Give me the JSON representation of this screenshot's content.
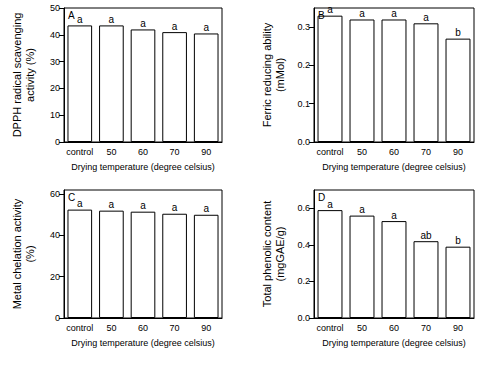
{
  "chart_data": [
    {
      "type": "bar",
      "title": "A",
      "categories": [
        "control",
        "50",
        "60",
        "70",
        "90"
      ],
      "values": [
        43.5,
        43.5,
        42,
        41,
        40.5
      ],
      "annotations": [
        "a",
        "a",
        "a",
        "a",
        "a"
      ],
      "color": "#ffffff",
      "xlabel": "Drying temperature (degree celsius)",
      "ylabel": "DPPH radical scavenging activity (%)",
      "ylim": [
        0,
        50
      ],
      "yticks": [
        0,
        10,
        20,
        30,
        40,
        50
      ],
      "grid": false
    },
    {
      "type": "bar",
      "title": "B",
      "categories": [
        "control",
        "50",
        "60",
        "70",
        "90"
      ],
      "values": [
        0.33,
        0.32,
        0.32,
        0.31,
        0.27
      ],
      "annotations": [
        "a",
        "a",
        "a",
        "a",
        "b"
      ],
      "color": "#ffffff",
      "xlabel": "Drying temperature (degree celsius)",
      "ylabel": "Ferric reducing ability (mMol)",
      "ylim": [
        0,
        0.35
      ],
      "yticks": [
        {
          "value": 0,
          "label": "0.0"
        },
        0.1,
        0.2,
        0.3
      ],
      "grid": false
    },
    {
      "type": "bar",
      "title": "C",
      "categories": [
        "control",
        "50",
        "60",
        "70",
        "90"
      ],
      "values": [
        52.5,
        52,
        51.5,
        50.5,
        50
      ],
      "annotations": [
        "a",
        "a",
        "a",
        "a",
        "a"
      ],
      "color": "#ffffff",
      "xlabel": "Drying temperature (degree celsius)",
      "ylabel": "Metal chelation activity (%)",
      "ylim": [
        0,
        62
      ],
      "yticks": [
        0,
        20,
        40,
        60
      ],
      "grid": false
    },
    {
      "type": "bar",
      "title": "D",
      "categories": [
        "control",
        "50",
        "60",
        "70",
        "90"
      ],
      "values": [
        0.59,
        0.56,
        0.53,
        0.42,
        0.39
      ],
      "annotations": [
        "a",
        "a",
        "a",
        "ab",
        "b"
      ],
      "color": "#ffffff",
      "xlabel": "Drying temperature (degree celsius)",
      "ylabel": "Total phenolic content (mgGAE/g)",
      "ylim": [
        0,
        0.7
      ],
      "yticks": [
        {
          "value": 0,
          "label": "0.0"
        },
        0.2,
        0.4,
        0.6
      ],
      "grid": false
    }
  ]
}
